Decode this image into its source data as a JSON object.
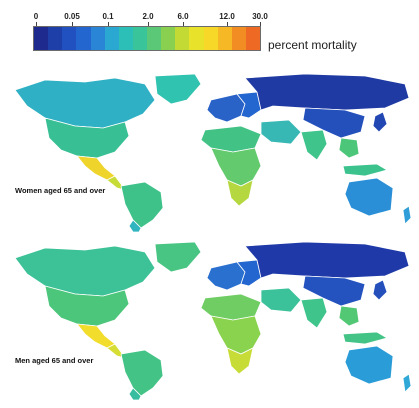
{
  "legend": {
    "ticks": [
      "0",
      "0.05",
      "0.1",
      "2.0",
      "6.0",
      "12.0",
      "30.0"
    ],
    "title": "percent mortality",
    "colors": [
      "#1f2a8f",
      "#1e3ea8",
      "#2150c0",
      "#2466cf",
      "#2a85d6",
      "#2aa8d2",
      "#2bbfb8",
      "#3ac49a",
      "#5bc878",
      "#8ad050",
      "#c2da33",
      "#e8e22a",
      "#f7d829",
      "#f6b825",
      "#f28d24",
      "#ee6a24"
    ]
  },
  "maps": [
    {
      "label": "Women aged 65 and over",
      "colors": {
        "north_america": "#2fb0c4",
        "greenland": "#2fc3b0",
        "usa": "#38c094",
        "mexico": "#efd42b",
        "central_america": "#c8dc38",
        "south_america": "#3ec28a",
        "south_america_south": "#2fb4c0",
        "europe": "#2a63c8",
        "europe_east": "#2466cf",
        "russia": "#1f3aa2",
        "africa_north": "#43c286",
        "africa": "#63ca6e",
        "africa_south": "#b5d840",
        "middle_east": "#38b8b4",
        "india": "#3fc48c",
        "china": "#2450bc",
        "se_asia": "#4cc678",
        "indonesia": "#3cc28c",
        "australia": "#2a8fd6",
        "japan": "#2246b2",
        "new_zealand": "#2f9ed8"
      }
    },
    {
      "label": "Men aged 65 and over",
      "colors": {
        "north_america": "#3cc296",
        "greenland": "#49c583",
        "usa": "#4cc67b",
        "mexico": "#f2dc2c",
        "central_america": "#d6de36",
        "south_america": "#44c386",
        "south_america_south": "#38bda0",
        "europe": "#2a70cf",
        "europe_east": "#2466cf",
        "russia": "#1f3aa8",
        "africa_north": "#6fcd64",
        "africa": "#8ad34e",
        "africa_south": "#c8dc38",
        "middle_east": "#3cc29a",
        "india": "#3fc48c",
        "china": "#2452be",
        "se_asia": "#52c774",
        "indonesia": "#44c386",
        "australia": "#2a9cd8",
        "japan": "#2550bc",
        "new_zealand": "#2fa8d8"
      }
    }
  ]
}
